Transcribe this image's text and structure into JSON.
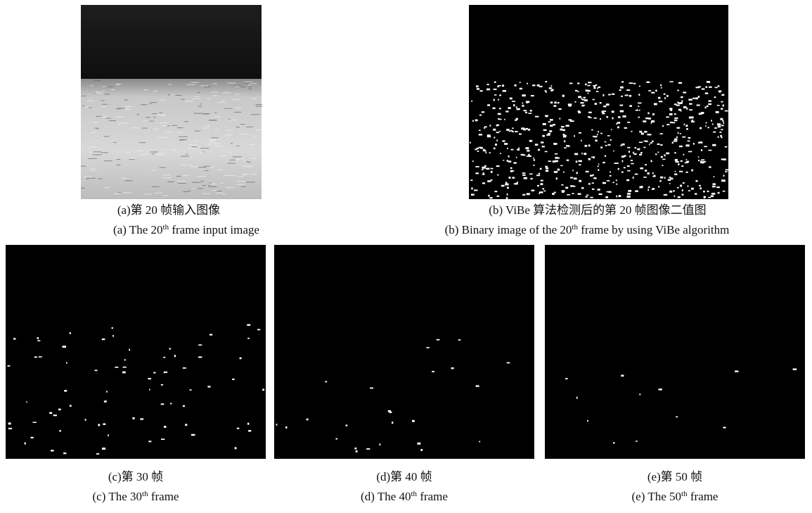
{
  "panels": [
    {
      "caption_cn": "(a)第 20 帧输入图像",
      "caption_en": {
        "before": "(a) The 20",
        "sup": "th",
        "after": " frame input image"
      }
    },
    {
      "caption_cn": "(b) ViBe 算法检测后的第 20 帧图像二值图",
      "caption_en": {
        "before": "(b) Binary image of the 20",
        "sup": "th",
        "after": " frame by using ViBe algorithm"
      }
    },
    {
      "caption_cn": "(c)第 30 帧",
      "caption_en": {
        "before": "(c) The 30",
        "sup": "th",
        "after": " frame"
      }
    },
    {
      "caption_cn": "(d)第 40 帧",
      "caption_en": {
        "before": "(d) The 40",
        "sup": "th",
        "after": " frame"
      }
    },
    {
      "caption_cn": "(e)第 50 帧",
      "caption_en": {
        "before": "(e) The 50",
        "sup": "th",
        "after": " frame"
      }
    }
  ]
}
